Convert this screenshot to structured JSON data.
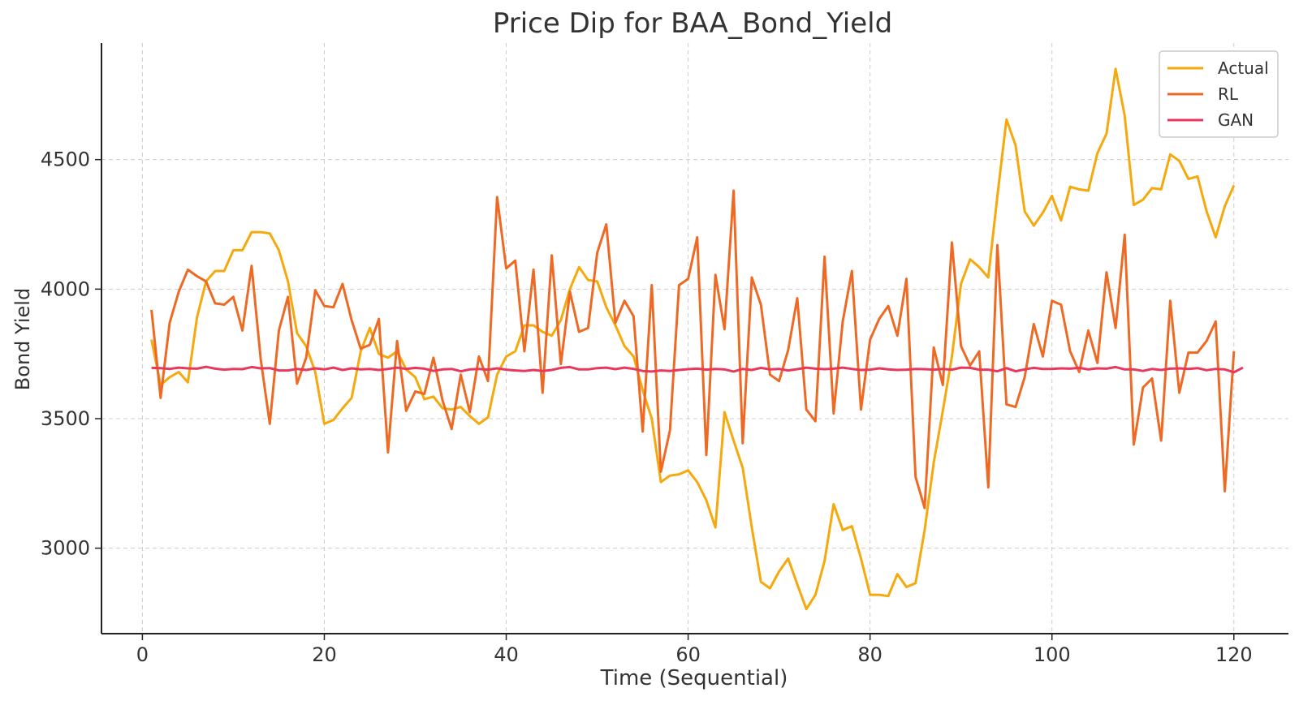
{
  "chart_data": {
    "type": "line",
    "title": "Price Dip for BAA_Bond_Yield",
    "xlabel": "Time (Sequential)",
    "ylabel": "Bond Yield",
    "xlim": [
      -4.5,
      126
    ],
    "ylim": [
      2670,
      4950
    ],
    "x_ticks": [
      0,
      20,
      40,
      60,
      80,
      100,
      120
    ],
    "y_ticks": [
      3000,
      3500,
      4000,
      4500
    ],
    "grid": true,
    "legend_position": "top-right",
    "series": [
      {
        "name": "Actual",
        "color": "#f5a90c",
        "x_start": 1,
        "values": [
          3805,
          3630,
          3660,
          3680,
          3640,
          3890,
          4030,
          4070,
          4070,
          4150,
          4150,
          4220,
          4220,
          4215,
          4150,
          4030,
          3830,
          3780,
          3680,
          3480,
          3495,
          3540,
          3580,
          3760,
          3850,
          3750,
          3735,
          3760,
          3690,
          3660,
          3575,
          3585,
          3540,
          3535,
          3545,
          3510,
          3480,
          3505,
          3670,
          3740,
          3760,
          3860,
          3860,
          3835,
          3820,
          3880,
          4000,
          4085,
          4035,
          4030,
          3930,
          3860,
          3780,
          3740,
          3610,
          3500,
          3255,
          3280,
          3285,
          3300,
          3255,
          3185,
          3080,
          3525,
          3415,
          3310,
          3080,
          2870,
          2845,
          2910,
          2960,
          2860,
          2765,
          2820,
          2950,
          3170,
          3070,
          3085,
          2960,
          2820,
          2820,
          2815,
          2900,
          2850,
          2865,
          3070,
          3330,
          3530,
          3740,
          4020,
          4115,
          4085,
          4045,
          4360,
          4655,
          4555,
          4300,
          4245,
          4295,
          4360,
          4265,
          4395,
          4385,
          4380,
          4525,
          4600,
          4850,
          4670,
          4325,
          4345,
          4390,
          4385,
          4520,
          4495,
          4425,
          4435,
          4300,
          4200,
          4320,
          4400
        ]
      },
      {
        "name": "RL",
        "color": "#ee6a24",
        "x_start": 1,
        "values": [
          3920,
          3580,
          3870,
          3990,
          4075,
          4050,
          4030,
          3945,
          3940,
          3970,
          3840,
          4090,
          3730,
          3480,
          3840,
          3970,
          3635,
          3735,
          3995,
          3935,
          3930,
          4020,
          3880,
          3770,
          3785,
          3885,
          3370,
          3800,
          3530,
          3605,
          3595,
          3735,
          3570,
          3460,
          3670,
          3525,
          3740,
          3645,
          4355,
          4080,
          4110,
          3760,
          4075,
          3600,
          4130,
          3710,
          3990,
          3835,
          3850,
          4140,
          4250,
          3870,
          3955,
          3895,
          3450,
          4015,
          3295,
          3455,
          4015,
          4040,
          4200,
          3360,
          4055,
          3845,
          4380,
          3405,
          4045,
          3940,
          3670,
          3645,
          3765,
          3965,
          3535,
          3490,
          4125,
          3520,
          3875,
          4070,
          3535,
          3805,
          3885,
          3935,
          3820,
          4040,
          3275,
          3155,
          3775,
          3630,
          4180,
          3780,
          3705,
          3760,
          3235,
          4170,
          3555,
          3545,
          3660,
          3865,
          3740,
          3955,
          3940,
          3760,
          3680,
          3840,
          3715,
          4065,
          3850,
          4210,
          3400,
          3620,
          3655,
          3415,
          3955,
          3600,
          3755,
          3755,
          3800,
          3875,
          3220,
          3760
        ]
      },
      {
        "name": "GAN",
        "color": "#e8385c",
        "x_start": 1,
        "values": [
          3696,
          3695,
          3692,
          3697,
          3694,
          3693,
          3700,
          3693,
          3689,
          3692,
          3691,
          3699,
          3694,
          3695,
          3686,
          3686,
          3692,
          3688,
          3694,
          3690,
          3697,
          3688,
          3694,
          3690,
          3692,
          3688,
          3692,
          3697,
          3692,
          3696,
          3693,
          3684,
          3690,
          3692,
          3683,
          3690,
          3692,
          3689,
          3694,
          3689,
          3686,
          3684,
          3688,
          3684,
          3688,
          3696,
          3699,
          3690,
          3690,
          3695,
          3697,
          3691,
          3697,
          3692,
          3684,
          3682,
          3686,
          3684,
          3688,
          3691,
          3693,
          3689,
          3692,
          3690,
          3682,
          3692,
          3688,
          3696,
          3690,
          3692,
          3686,
          3691,
          3697,
          3693,
          3691,
          3693,
          3697,
          3692,
          3688,
          3689,
          3694,
          3690,
          3688,
          3689,
          3692,
          3691,
          3689,
          3692,
          3689,
          3697,
          3696,
          3689,
          3689,
          3683,
          3695,
          3683,
          3690,
          3696,
          3692,
          3692,
          3694,
          3693,
          3696,
          3690,
          3694,
          3693,
          3699,
          3690,
          3690,
          3684,
          3692,
          3688,
          3693,
          3694,
          3692,
          3695,
          3687,
          3692,
          3690,
          3679,
          3697
        ]
      }
    ]
  }
}
